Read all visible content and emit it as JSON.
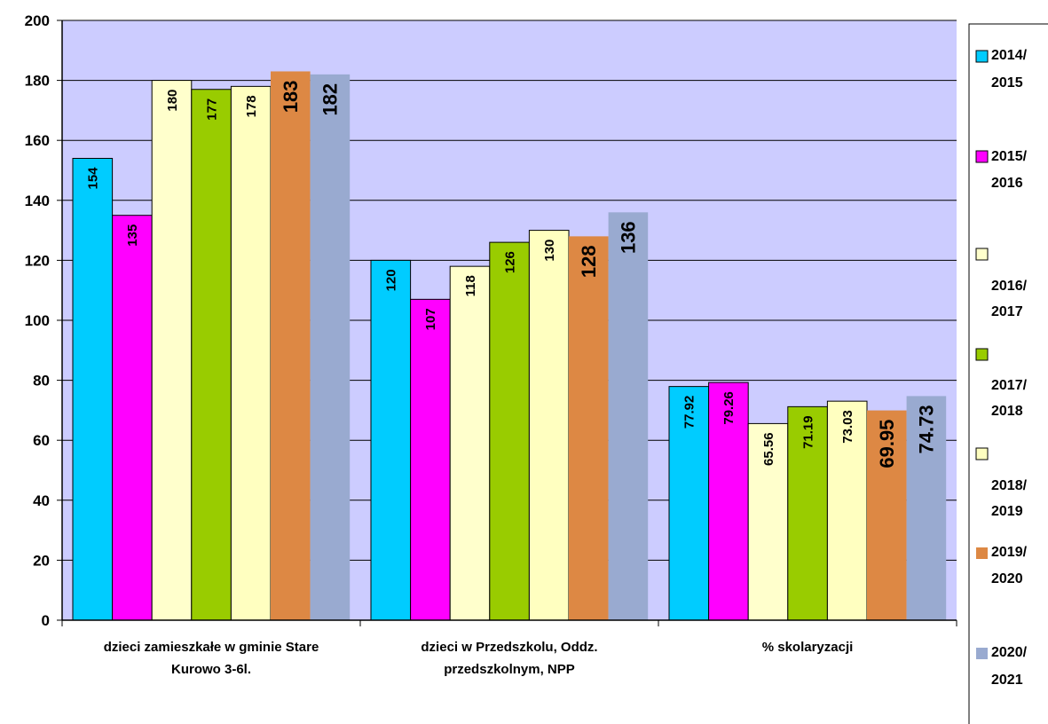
{
  "chart_data": {
    "type": "bar",
    "title": "",
    "xlabel": "",
    "ylabel": "",
    "ylim": [
      0,
      200
    ],
    "yticks": [
      0,
      20,
      40,
      60,
      80,
      100,
      120,
      140,
      160,
      180,
      200
    ],
    "grid": true,
    "legend_position": "right",
    "plot_background": "#ccccff",
    "categories": [
      [
        "dzieci zamieszkałe w gminie Stare",
        "Kurowo 3-6l."
      ],
      [
        "dzieci w Przedszkolu, Oddz.",
        "przedszkolnym, NPP"
      ],
      [
        "% skolaryzacji"
      ]
    ],
    "series": [
      {
        "name": [
          "2014/",
          "2015"
        ],
        "color": "#00ccff",
        "values": [
          154,
          120,
          77.92
        ],
        "labels": [
          "154",
          "120",
          "77.92"
        ]
      },
      {
        "name": [
          "2015/",
          "2016"
        ],
        "color": "#ff00ff",
        "values": [
          135,
          107,
          79.26
        ],
        "labels": [
          "135",
          "107",
          "79.26"
        ]
      },
      {
        "name": [
          "2016/",
          "2017"
        ],
        "color": "#ffffcc",
        "values": [
          180,
          118,
          65.56
        ],
        "labels": [
          "180",
          "118",
          "65.56"
        ]
      },
      {
        "name": [
          "2017/",
          "2018"
        ],
        "color": "#99cc00",
        "values": [
          177,
          126,
          71.19
        ],
        "labels": [
          "177",
          "126",
          "71.19"
        ]
      },
      {
        "name": [
          "2018/",
          "2019"
        ],
        "color": "#ffffc0",
        "values": [
          178,
          130,
          73.03
        ],
        "labels": [
          "178",
          "130",
          "73.03"
        ]
      },
      {
        "name": [
          "2019/",
          "2020"
        ],
        "color": "#dd8844",
        "values": [
          183,
          128,
          69.95
        ],
        "labels": [
          "183",
          "128",
          "69.95"
        ]
      },
      {
        "name": [
          "2020/",
          "2021"
        ],
        "color": "#99aad0",
        "values": [
          182,
          136,
          74.73
        ],
        "labels": [
          "182",
          "136",
          "74.73"
        ]
      }
    ]
  }
}
